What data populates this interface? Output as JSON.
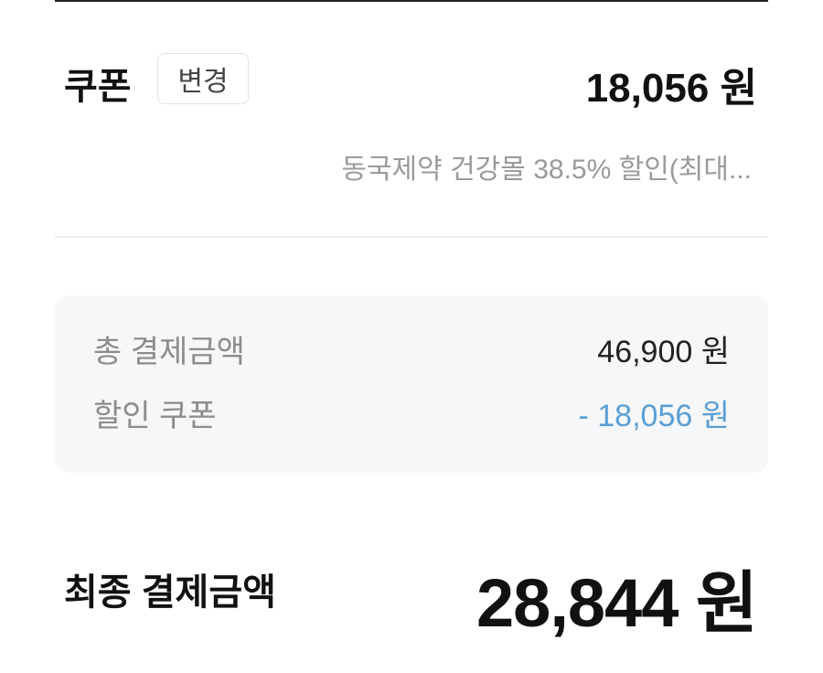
{
  "coupon": {
    "title": "쿠폰",
    "change_label": "변경",
    "amount": "18,056 원",
    "description": "동국제약 건강몰 38.5% 할인(최대..."
  },
  "summary": {
    "rows": [
      {
        "label": "총 결제금액",
        "value": "46,900 원"
      },
      {
        "label": "할인 쿠폰",
        "value": "- 18,056 원"
      }
    ]
  },
  "final": {
    "label": "최종 결제금액",
    "amount": "28,844 원"
  },
  "colors": {
    "discount": "#5a9fd6",
    "summary_bg": "#f6f7f9"
  }
}
